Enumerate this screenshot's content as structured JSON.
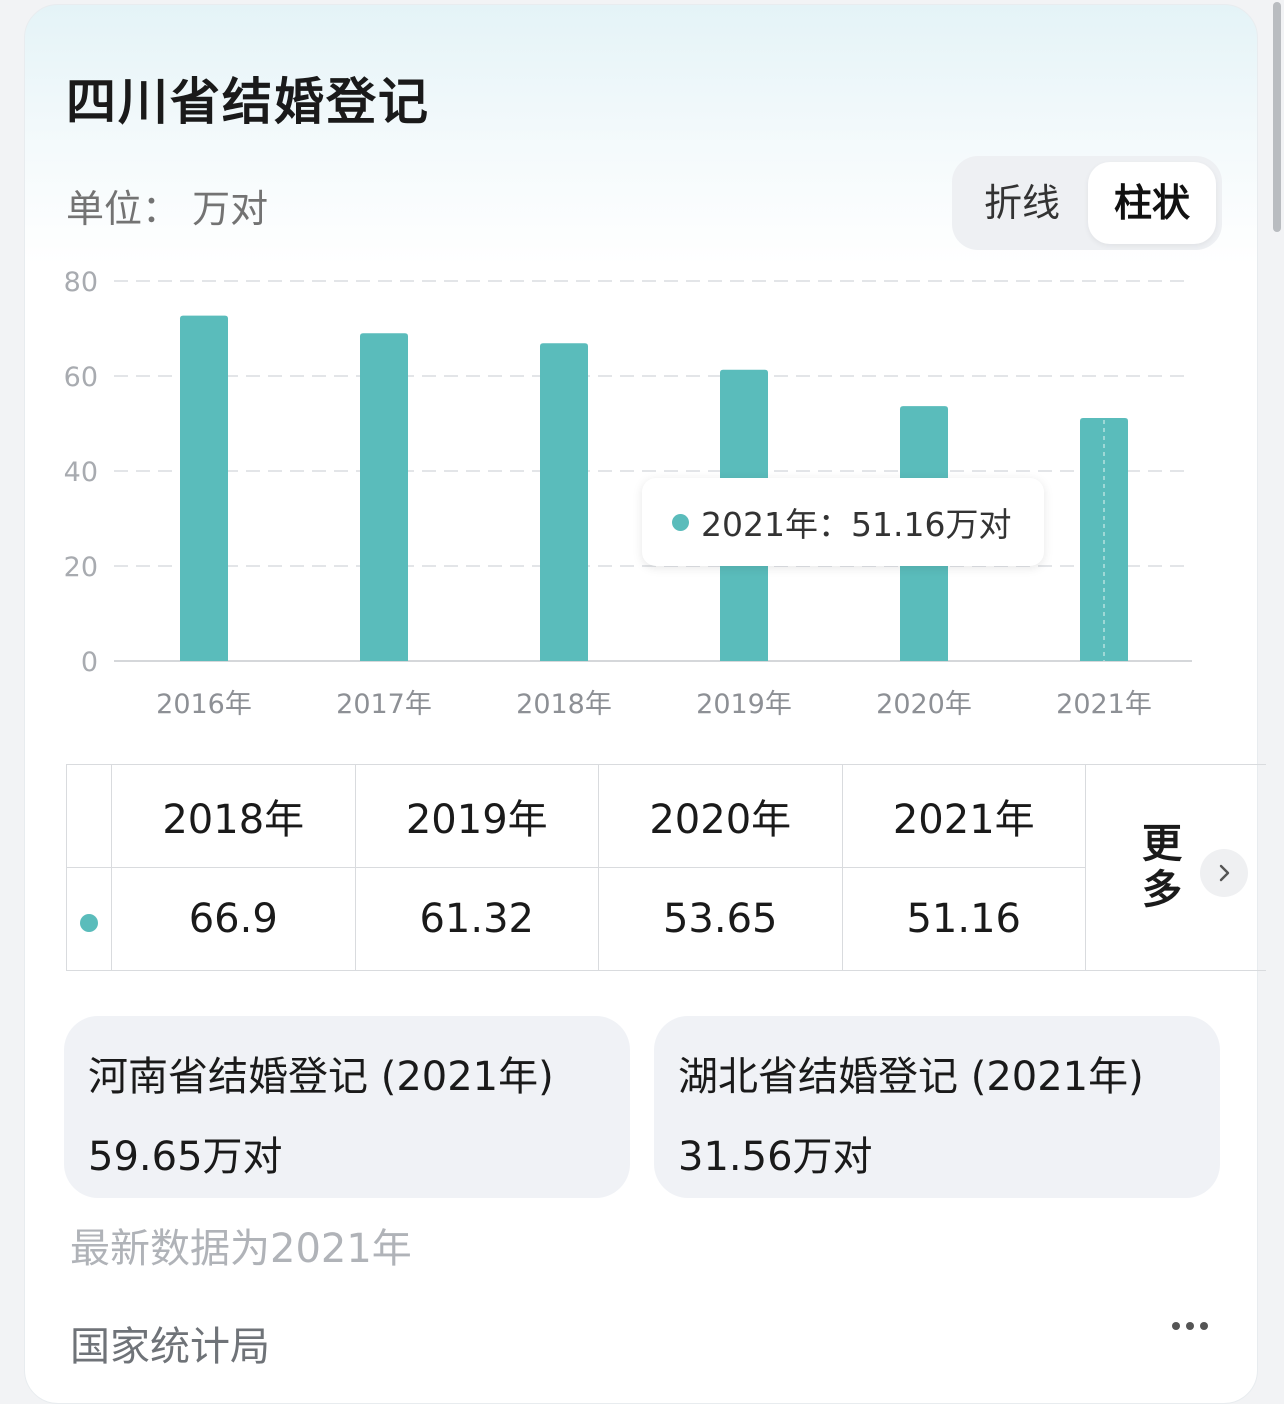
{
  "title": "四川省结婚登记",
  "unit_label": "单位： 万对",
  "toggle": {
    "line_label": "折线",
    "bar_label": "柱状",
    "selected": "柱状"
  },
  "colors": {
    "bar": "#5abcbb",
    "accent": "#5abcbb"
  },
  "chart_data": {
    "type": "bar",
    "title": "",
    "xlabel": "",
    "ylabel": "",
    "ylim": [
      0,
      80
    ],
    "yticks": [
      0,
      20,
      40,
      60,
      80
    ],
    "grid": true,
    "categories": [
      "2016年",
      "2017年",
      "2018年",
      "2019年",
      "2020年",
      "2021年"
    ],
    "values": [
      72.7,
      69,
      66.9,
      61.32,
      53.65,
      51.16
    ]
  },
  "tooltip": {
    "text": "2021年：51.16万对"
  },
  "table": {
    "headers": [
      "2018年",
      "2019年",
      "2020年",
      "2021年"
    ],
    "values": [
      "66.9",
      "61.32",
      "53.65",
      "51.16"
    ],
    "more_label": "更多"
  },
  "related": [
    {
      "title": "河南省结婚登记 (2021年)",
      "value": "59.65万对"
    },
    {
      "title": "湖北省结婚登记 (2021年)",
      "value": "31.56万对"
    }
  ],
  "latest_note": "最新数据为2021年",
  "source": "国家统计局"
}
